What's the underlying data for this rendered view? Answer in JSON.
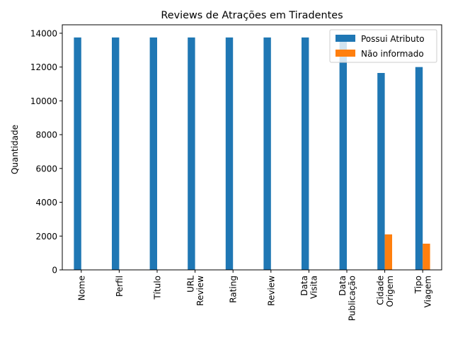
{
  "chart_data": {
    "type": "bar",
    "title": "Reviews de Atrações em Tiradentes",
    "xlabel": "",
    "ylabel": "Quantidade",
    "ylim": [
      0,
      14500
    ],
    "yticks": [
      0,
      2000,
      4000,
      6000,
      8000,
      10000,
      12000,
      14000
    ],
    "categories": [
      [
        "Nome"
      ],
      [
        "Perfil"
      ],
      [
        "Título"
      ],
      [
        "URL",
        "Review"
      ],
      [
        "Rating"
      ],
      [
        "Review"
      ],
      [
        "Data",
        "Visita"
      ],
      [
        "Data",
        "Publicação"
      ],
      [
        "Cidade",
        "Origem"
      ],
      [
        "Tipo",
        "Viagem"
      ]
    ],
    "series": [
      {
        "name": "Possui Atributo",
        "color": "#1f77b4",
        "values": [
          13750,
          13750,
          13750,
          13750,
          13750,
          13750,
          13750,
          13750,
          11650,
          12000
        ]
      },
      {
        "name": "Não informado",
        "color": "#ff7f0e",
        "values": [
          0,
          0,
          0,
          0,
          0,
          0,
          0,
          0,
          2100,
          1550
        ]
      }
    ],
    "grid": false,
    "legend_position": "top-right"
  }
}
